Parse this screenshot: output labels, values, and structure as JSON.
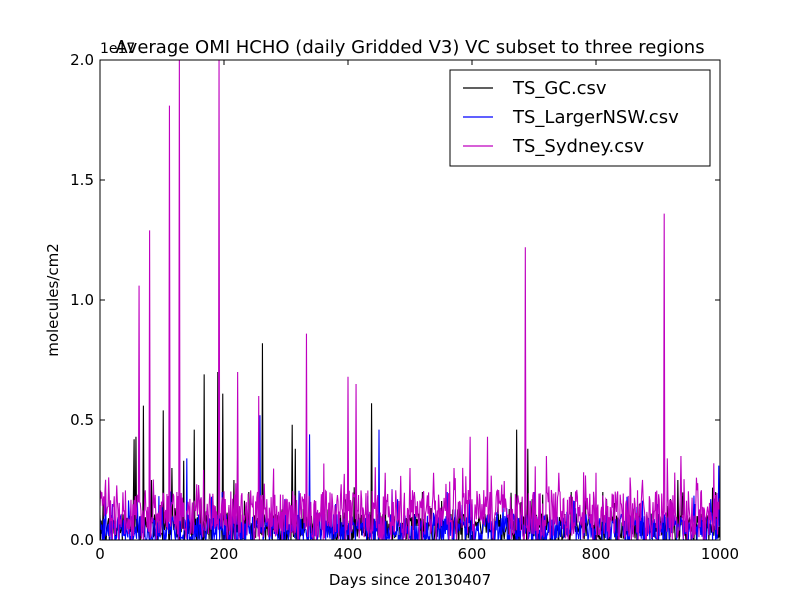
{
  "chart_data": {
    "type": "line",
    "title": "Average OMI HCHO (daily Gridded V3) VC subset to three regions",
    "xlabel": "Days since 20130407",
    "ylabel": "molecules/cm2",
    "y_scale_label": "1e17",
    "xlim": [
      0,
      1000
    ],
    "ylim": [
      0,
      2.0
    ],
    "x_ticks": [
      0,
      200,
      400,
      600,
      800,
      1000
    ],
    "x_tick_labels": [
      "0",
      "200",
      "400",
      "600",
      "800",
      "1000"
    ],
    "y_ticks": [
      0.0,
      0.5,
      1.0,
      1.5,
      2.0
    ],
    "y_tick_labels": [
      "0.0",
      "0.5",
      "1.0",
      "1.5",
      "2.0"
    ],
    "grid": false,
    "legend_position": "top-right",
    "series": [
      {
        "name": "TS_GC.csv",
        "color": "#000000",
        "baseline": 0.05,
        "noise": 0.06,
        "seed": 11,
        "peaks": [
          [
            55,
            0.42
          ],
          [
            58,
            0.43
          ],
          [
            70,
            0.56
          ],
          [
            83,
            0.25
          ],
          [
            102,
            0.54
          ],
          [
            116,
            0.3
          ],
          [
            135,
            0.33
          ],
          [
            152,
            0.46
          ],
          [
            168,
            0.69
          ],
          [
            190,
            0.7
          ],
          [
            198,
            0.61
          ],
          [
            216,
            0.25
          ],
          [
            222,
            0.4
          ],
          [
            240,
            0.2
          ],
          [
            262,
            0.82
          ],
          [
            310,
            0.48
          ],
          [
            315,
            0.38
          ],
          [
            360,
            0.2
          ],
          [
            410,
            0.22
          ],
          [
            438,
            0.57
          ],
          [
            460,
            0.25
          ],
          [
            520,
            0.2
          ],
          [
            580,
            0.15
          ],
          [
            672,
            0.46
          ],
          [
            690,
            0.38
          ],
          [
            760,
            0.2
          ],
          [
            870,
            0.15
          ],
          [
            932,
            0.25
          ],
          [
            993,
            0.2
          ]
        ]
      },
      {
        "name": "TS_LargerNSW.csv",
        "color": "#0000ff",
        "baseline": 0.04,
        "noise": 0.07,
        "seed": 23,
        "peaks": [
          [
            20,
            0.15
          ],
          [
            60,
            0.18
          ],
          [
            100,
            0.16
          ],
          [
            140,
            0.34
          ],
          [
            180,
            0.18
          ],
          [
            197,
            0.2
          ],
          [
            258,
            0.52
          ],
          [
            298,
            0.17
          ],
          [
            338,
            0.44
          ],
          [
            380,
            0.15
          ],
          [
            450,
            0.46
          ],
          [
            480,
            0.17
          ],
          [
            560,
            0.2
          ],
          [
            600,
            0.15
          ],
          [
            650,
            0.15
          ],
          [
            700,
            0.2
          ],
          [
            780,
            0.15
          ],
          [
            850,
            0.18
          ],
          [
            900,
            0.15
          ],
          [
            960,
            0.15
          ],
          [
            998,
            0.31
          ]
        ]
      },
      {
        "name": "TS_Sydney.csv",
        "color": "#bf00bf",
        "baseline": 0.1,
        "noise": 0.11,
        "seed": 37,
        "peaks": [
          [
            63,
            1.06
          ],
          [
            80,
            1.29
          ],
          [
            112,
            1.81
          ],
          [
            128,
            2.0
          ],
          [
            192,
            2.0
          ],
          [
            222,
            0.7
          ],
          [
            256,
            0.6
          ],
          [
            333,
            0.86
          ],
          [
            400,
            0.68
          ],
          [
            413,
            0.65
          ],
          [
            460,
            0.28
          ],
          [
            500,
            0.3
          ],
          [
            538,
            0.28
          ],
          [
            597,
            0.43
          ],
          [
            625,
            0.43
          ],
          [
            686,
            1.22
          ],
          [
            720,
            0.35
          ],
          [
            740,
            0.28
          ],
          [
            800,
            0.28
          ],
          [
            910,
            1.36
          ],
          [
            915,
            0.34
          ],
          [
            937,
            0.35
          ],
          [
            962,
            0.26
          ],
          [
            990,
            0.32
          ]
        ]
      }
    ]
  }
}
